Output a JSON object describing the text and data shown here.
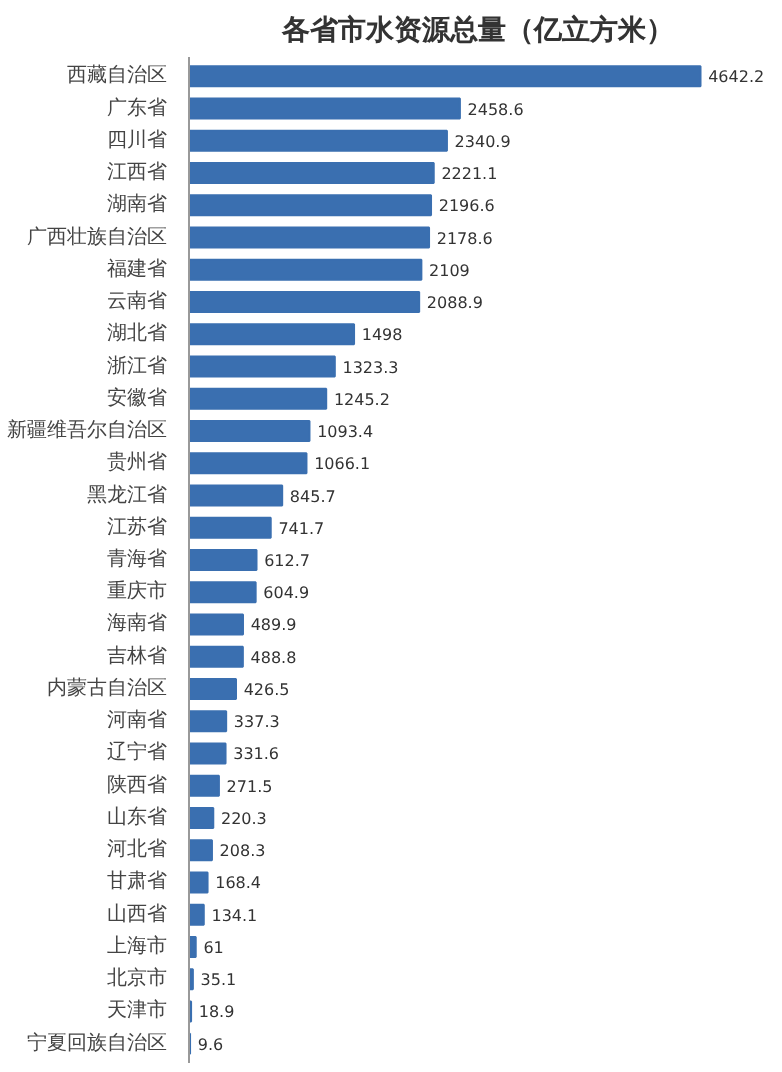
{
  "chart_data": {
    "type": "bar",
    "orientation": "horizontal",
    "title": "各省市水资源总量（亿立方米）",
    "data_labels": true,
    "grid": false,
    "categories": [
      "西藏自治区",
      "广东省",
      "四川省",
      "江西省",
      "湖南省",
      "广西壮族自治区",
      "福建省",
      "云南省",
      "湖北省",
      "浙江省",
      "安徽省",
      "新疆维吾尔自治区",
      "贵州省",
      "黑龙江省",
      "江苏省",
      "青海省",
      "重庆市",
      "海南省",
      "吉林省",
      "内蒙古自治区",
      "河南省",
      "辽宁省",
      "陕西省",
      "山东省",
      "河北省",
      "甘肃省",
      "山西省",
      "上海市",
      "北京市",
      "天津市",
      "宁夏回族自治区"
    ],
    "values": [
      4642.2,
      2458.6,
      2340.9,
      2221.1,
      2196.6,
      2178.6,
      2109,
      2088.9,
      1498,
      1323.3,
      1245.2,
      1093.4,
      1066.1,
      845.7,
      741.7,
      612.7,
      604.9,
      489.9,
      488.8,
      426.5,
      337.3,
      331.6,
      271.5,
      220.3,
      208.3,
      168.4,
      134.1,
      61,
      35.1,
      18.9,
      9.6
    ],
    "color": "#3a6fb0"
  }
}
